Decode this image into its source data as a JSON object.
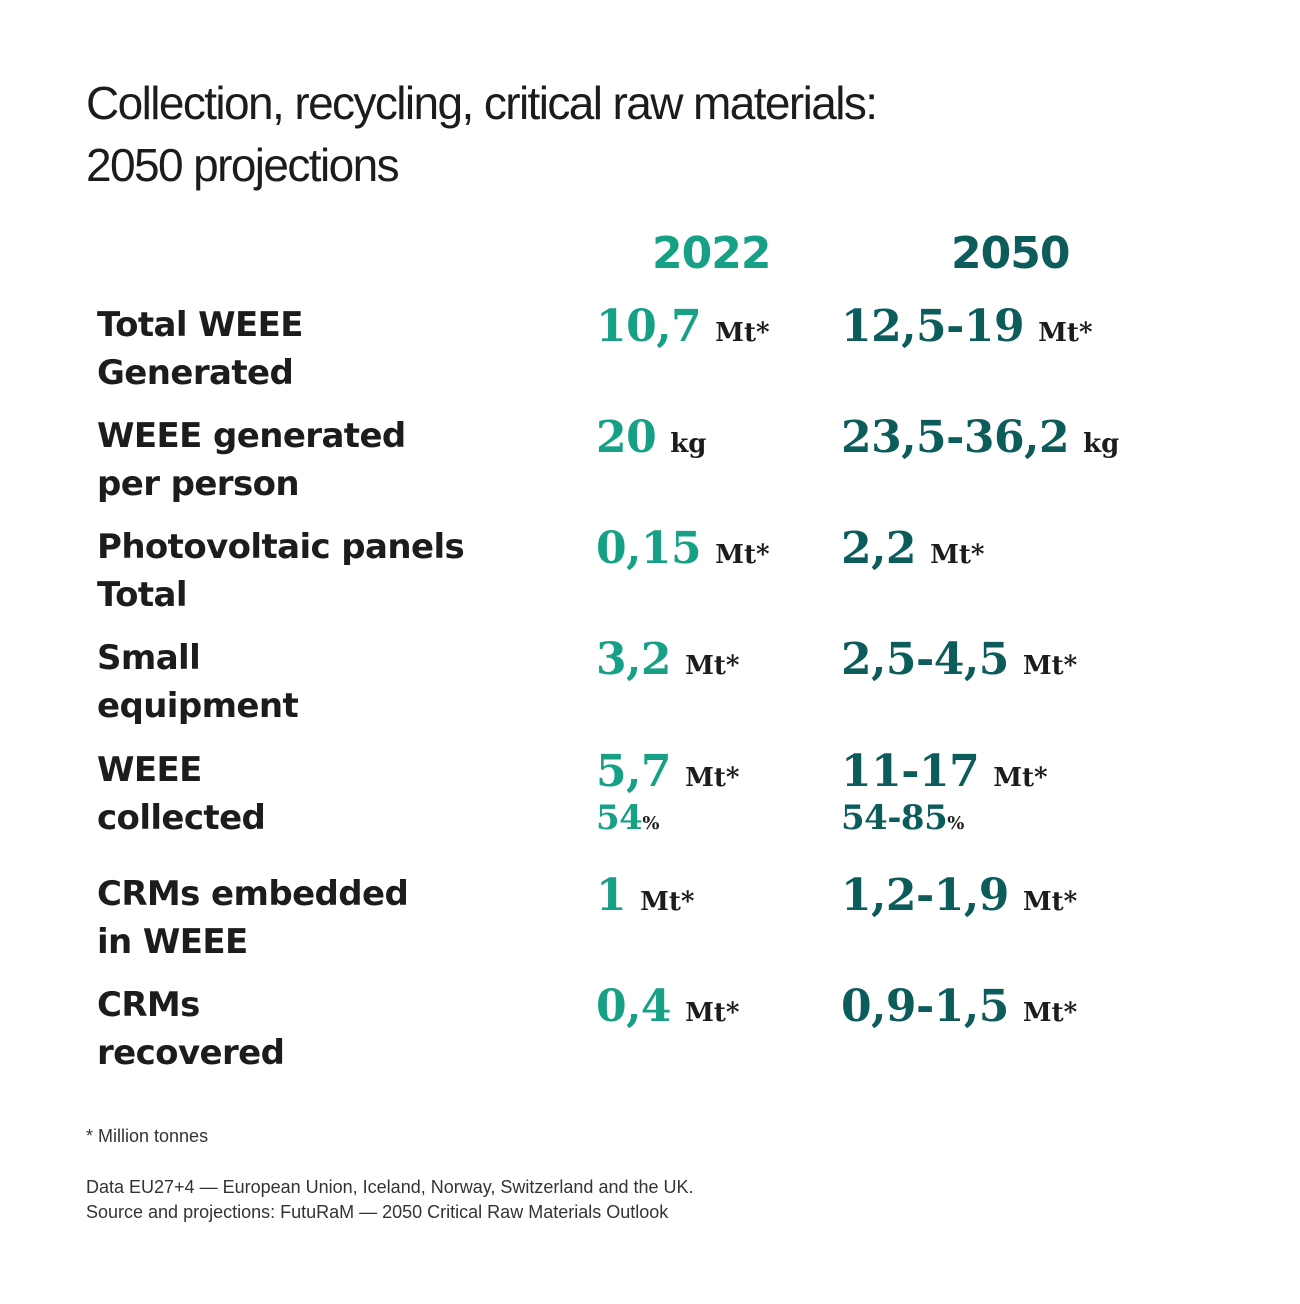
{
  "title_lines": [
    "Collection, recycling, critical raw materials:",
    "2050 projections"
  ],
  "colors": {
    "col_2022": "#16a085",
    "col_2050": "#0d5c5c",
    "text": "#1c1c1c"
  },
  "chart_data": {
    "type": "table",
    "columns": [
      "2022",
      "2050"
    ],
    "rows": [
      {
        "label_lines": [
          "Total WEEE",
          "Generated"
        ],
        "v2022": "10,7",
        "u2022": "Mt*",
        "v2050": "12,5-19",
        "u2050": "Mt*"
      },
      {
        "label_lines": [
          "WEEE generated",
          "per person"
        ],
        "v2022": "20",
        "u2022": "kg",
        "v2050": "23,5-36,2",
        "u2050": "kg"
      },
      {
        "label_lines": [
          "Photovoltaic panels",
          "Total"
        ],
        "v2022": "0,15",
        "u2022": "Mt*",
        "v2050": "2,2",
        "u2050": "Mt*"
      },
      {
        "label_lines": [
          "Small",
          "equipment"
        ],
        "v2022": "3,2",
        "u2022": "Mt*",
        "v2050": "2,5-4,5",
        "u2050": "Mt*"
      },
      {
        "label_lines": [
          "WEEE",
          "collected"
        ],
        "v2022": "5,7",
        "u2022": "Mt*",
        "v2050": "11-17",
        "u2050": "Mt*",
        "p2022": "54",
        "p2050": "54-85",
        "pct_sign": "%"
      },
      {
        "label_lines": [
          "CRMs embedded",
          "in WEEE"
        ],
        "v2022": "1",
        "u2022": "Mt*",
        "v2050": "1,2-1,9",
        "u2050": "Mt*"
      },
      {
        "label_lines": [
          "CRMs",
          "recovered"
        ],
        "v2022": "0,4",
        "u2022": "Mt*",
        "v2050": "0,9-1,5",
        "u2050": "Mt*"
      }
    ]
  },
  "footnote": "* Million tonnes",
  "source_lines": [
    "Data EU27+4 — European Union, Iceland, Norway, Switzerland and the UK.",
    "Source and projections: FutuRaM — 2050 Critical Raw Materials Outlook"
  ]
}
